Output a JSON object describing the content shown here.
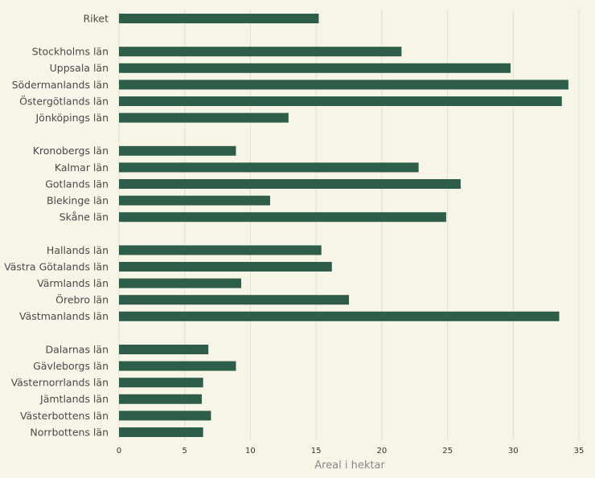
{
  "colors": {
    "background": "#f7f4e8",
    "bar": "#2e5e4a",
    "grid": "#e3e0cf",
    "axis_title": "#8a8a8a",
    "label": "#4a4a4a"
  },
  "chart_data": {
    "type": "bar",
    "orientation": "horizontal",
    "title": "",
    "xlabel": "Areal i hektar",
    "ylabel": "",
    "xlim": [
      0,
      35
    ],
    "xticks": [
      0,
      5,
      10,
      15,
      20,
      25,
      30,
      35
    ],
    "grid": true,
    "categories": [
      "Riket",
      "Stockholms län",
      "Uppsala län",
      "Södermanlands län",
      "Östergötlands län",
      "Jönköpings län",
      "Kronobergs län",
      "Kalmar län",
      "Gotlands län",
      "Blekinge län",
      "Skåne län",
      "Hallands län",
      "Västra Götalands län",
      "Värmlands län",
      "Örebro län",
      "Västmanlands län",
      "Dalarnas län",
      "Gävleborgs län",
      "Västernorrlands län",
      "Jämtlands län",
      "Västerbottens län",
      "Norrbottens län"
    ],
    "groups": [
      1,
      5,
      5,
      5,
      6
    ],
    "values": [
      15.2,
      21.5,
      29.8,
      34.2,
      33.7,
      12.9,
      8.9,
      22.8,
      26.0,
      11.5,
      24.9,
      15.4,
      16.2,
      9.3,
      17.5,
      33.5,
      6.8,
      8.9,
      6.4,
      6.3,
      7.0,
      6.4
    ]
  }
}
